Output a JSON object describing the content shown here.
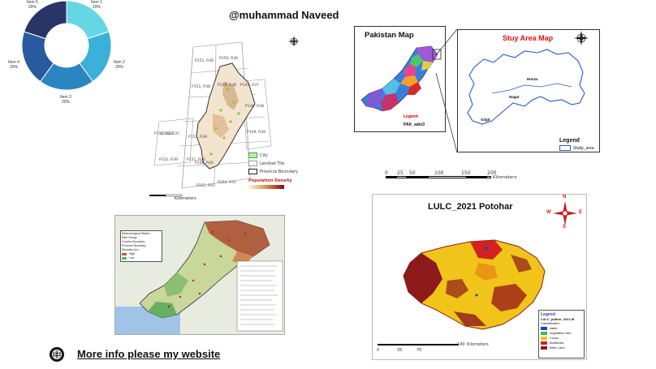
{
  "header": {
    "handle": "@muhammad Naveed"
  },
  "footer": {
    "link_text": "More info please my website",
    "icon": "globe-icon"
  },
  "donut": {
    "chart_data": {
      "type": "pie",
      "categories": [
        "Item 1",
        "Item 2",
        "Item 3",
        "Item 4",
        "Item 5"
      ],
      "values": [
        20,
        20,
        20,
        20,
        20
      ],
      "labels": [
        "Item 1\n20%",
        "Item 2\n20%",
        "Item 3\n20%",
        "Item 4\n20%",
        "Item 5\n20%"
      ],
      "colors": [
        "#67d6e4",
        "#3bb0d8",
        "#2a86c1",
        "#2a5a9e",
        "#283566"
      ]
    },
    "labels": {
      "i1_name": "Item 1",
      "i1_pct": "20%",
      "i2_name": "Item 2",
      "i2_pct": "20%",
      "i3_name": "Item 3",
      "i3_pct": "20%",
      "i4_name": "Item 4",
      "i4_pct": "20%",
      "i5_name": "Item 5",
      "i5_pct": "20%"
    }
  },
  "tiles_map": {
    "legend": {
      "city": "City",
      "landsat": "Landsat Tile",
      "province": "Province Boundary",
      "population": "Population Density",
      "scale_unit": "Kilometers"
    },
    "tile_labels": [
      "P151, R36",
      "P150, R36",
      "P152, R37",
      "P149, R37",
      "P151, R38",
      "P150, R38",
      "P148, R38",
      "P152, R39",
      "P151, R39",
      "P149, R39",
      "P150, R40",
      "P151, R40",
      "P152, R40",
      "P151, R41",
      "P150, R41"
    ]
  },
  "pakistan_map": {
    "title": "Pakistan Map",
    "legend_title": "Legend",
    "legend_item": "PAK_adm3"
  },
  "study_area": {
    "title": "Stuy Area Map",
    "places": [
      "Hunza",
      "Nagar",
      "Gilgit"
    ],
    "legend_title": "Legend",
    "legend_item": "Study_area"
  },
  "scalebar": {
    "ticks": [
      "0",
      "25",
      "50",
      "100",
      "150",
      "200"
    ],
    "unit": "Kilometers"
  },
  "lulc": {
    "title": "LULC_2021 Potohar",
    "legend_title": "Legend",
    "legend_sub": "LULC_pothar_2021.tif",
    "classification": "Classification",
    "classes": [
      {
        "name": "water",
        "color": "#1a3fd6"
      },
      {
        "name": "vegetation free",
        "color": "#35c24a"
      },
      {
        "name": "Crops",
        "color": "#f0c419"
      },
      {
        "name": "BuildArea",
        "color": "#d42020"
      },
      {
        "name": "Bare Land",
        "color": "#8c1a1a"
      }
    ],
    "scale_ticks": [
      "0",
      "35",
      "70",
      "140"
    ],
    "scale_unit": "Kilometers",
    "compass": {
      "n": "N",
      "s": "S",
      "e": "E",
      "w": "W"
    }
  },
  "elevation_map": {
    "legend_items": [
      "Meteorological Station",
      "Rain Gauge",
      "Country Boundary",
      "Province Boundary",
      "Elevation (m)",
      "High",
      "Low"
    ]
  }
}
